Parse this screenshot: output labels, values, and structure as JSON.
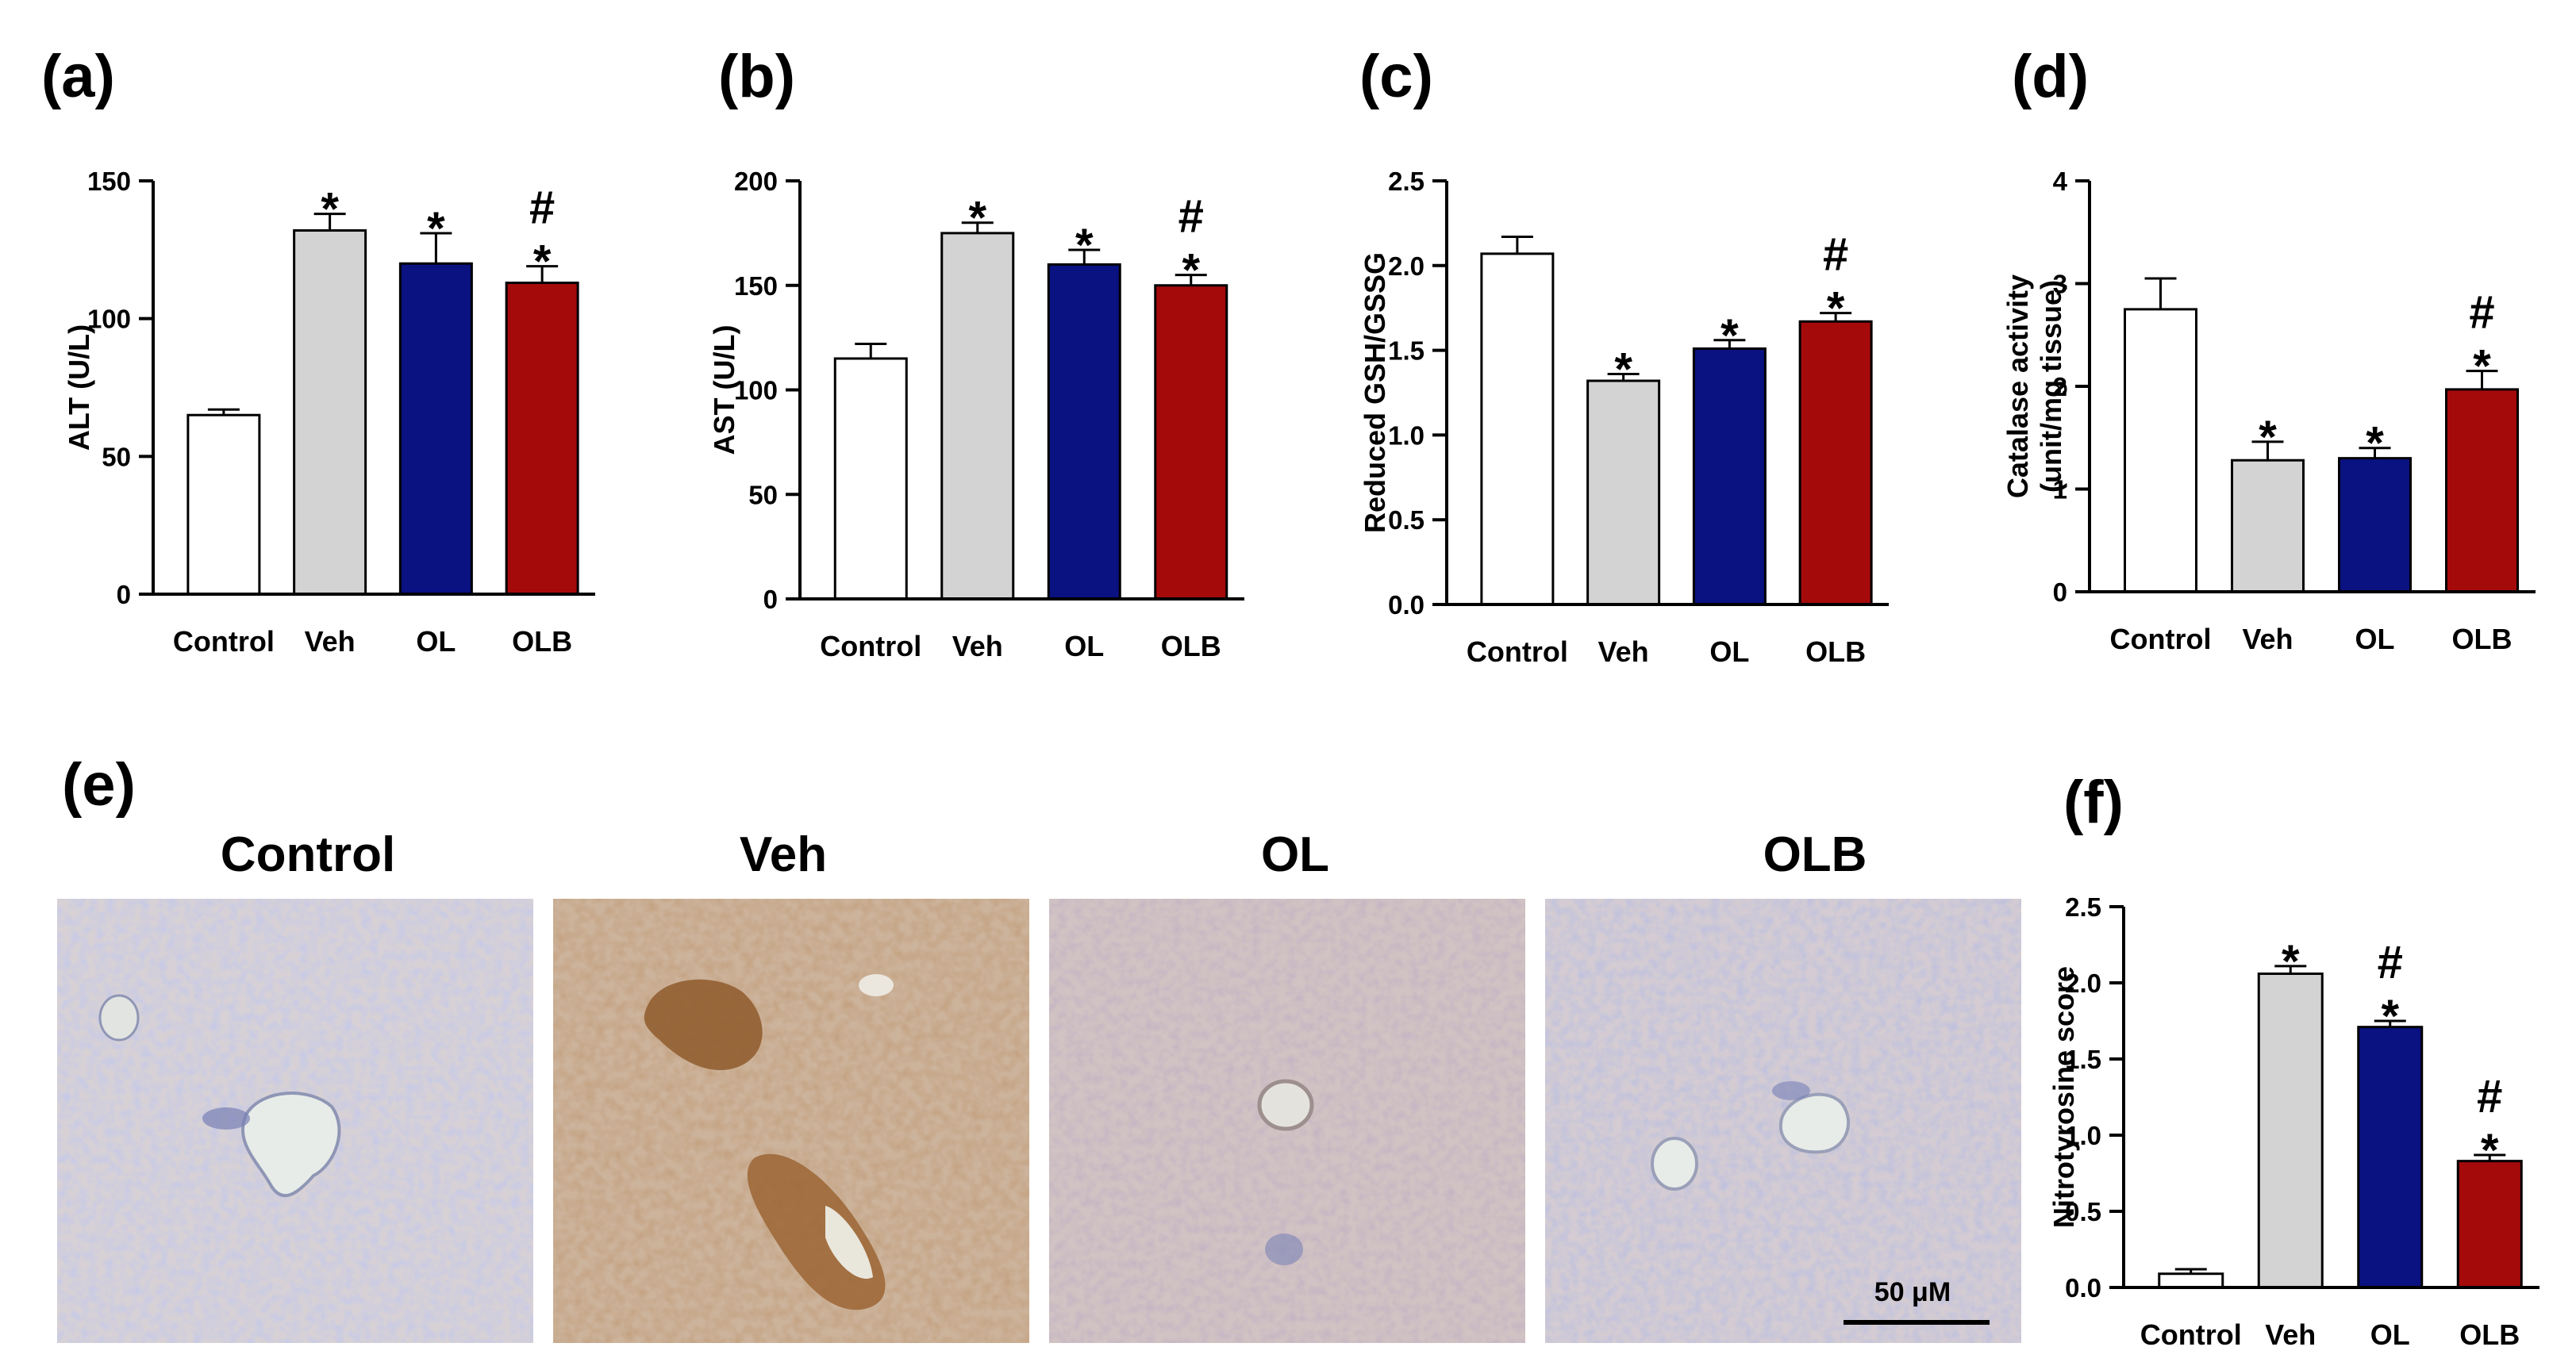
{
  "colors": {
    "Control": "#ffffff",
    "Veh": "#d3d3d3",
    "OL": "#0a1180",
    "OLB": "#a50a0a",
    "axis": "#000000"
  },
  "micrographs": {
    "label": "(e)",
    "titles": [
      "Control",
      "Veh",
      "OL",
      "OLB"
    ],
    "scale_bar_label": "50 μM"
  },
  "chart_data": [
    {
      "label": "(a)",
      "type": "bar",
      "categories": [
        "Control",
        "Veh",
        "OL",
        "OLB"
      ],
      "values": [
        65,
        132,
        120,
        113
      ],
      "errors": [
        2,
        6,
        11,
        6
      ],
      "annotations": [
        "",
        "*",
        "*",
        "#\n*"
      ],
      "ylabel": "ALT (U/L)",
      "ylim": [
        0,
        150
      ],
      "yticks": [
        "0",
        "50",
        "100",
        "150"
      ]
    },
    {
      "label": "(b)",
      "type": "bar",
      "categories": [
        "Control",
        "Veh",
        "OL",
        "OLB"
      ],
      "values": [
        115,
        175,
        160,
        150
      ],
      "errors": [
        7,
        5,
        7,
        5
      ],
      "annotations": [
        "",
        "*",
        "*",
        "#\n*"
      ],
      "ylabel": "AST (U/L)",
      "ylim": [
        0,
        200
      ],
      "yticks": [
        "0",
        "50",
        "100",
        "150",
        "200"
      ]
    },
    {
      "label": "(c)",
      "type": "bar",
      "categories": [
        "Control",
        "Veh",
        "OL",
        "OLB"
      ],
      "values": [
        2.07,
        1.32,
        1.51,
        1.67
      ],
      "errors": [
        0.1,
        0.04,
        0.05,
        0.05
      ],
      "annotations": [
        "",
        "*",
        "*",
        "#\n*"
      ],
      "ylabel": "Reduced GSH/GSSG",
      "ylim": [
        0,
        2.5
      ],
      "yticks": [
        "0.0",
        "0.5",
        "1.0",
        "1.5",
        "2.0",
        "2.5"
      ]
    },
    {
      "label": "(d)",
      "type": "bar",
      "categories": [
        "Control",
        "Veh",
        "OL",
        "OLB"
      ],
      "values": [
        2.75,
        1.28,
        1.3,
        1.97
      ],
      "errors": [
        0.3,
        0.18,
        0.1,
        0.18
      ],
      "annotations": [
        "",
        "*",
        "*",
        "#\n*"
      ],
      "ylabel": "Catalase activity\n(unit/mg tissue)",
      "ylim": [
        0,
        4
      ],
      "yticks": [
        "0",
        "1",
        "2",
        "3",
        "4"
      ]
    },
    {
      "label": "(f)",
      "type": "bar",
      "categories": [
        "Control",
        "Veh",
        "OL",
        "OLB"
      ],
      "values": [
        0.09,
        2.06,
        1.71,
        0.83
      ],
      "errors": [
        0.03,
        0.05,
        0.04,
        0.04
      ],
      "annotations": [
        "",
        "*",
        "#\n*",
        "#\n*"
      ],
      "ylabel": "Nitrotyrosine score",
      "ylim": [
        0,
        2.5
      ],
      "yticks": [
        "0.0",
        "0.5",
        "1.0",
        "1.5",
        "2.0",
        "2.5"
      ]
    }
  ]
}
